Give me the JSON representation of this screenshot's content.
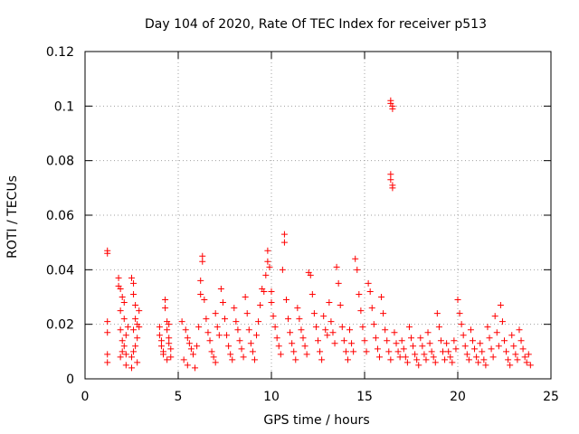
{
  "chart_data": {
    "type": "scatter",
    "title": "Day 104 of 2020, Rate Of TEC Index for receiver p513",
    "xlabel": "GPS time / hours",
    "ylabel": "ROTI / TECUs",
    "xlim": [
      0,
      25
    ],
    "ylim": [
      0,
      0.12
    ],
    "xticks": [
      0,
      5,
      10,
      15,
      20,
      25
    ],
    "yticks": [
      0,
      0.02,
      0.04,
      0.06,
      0.08,
      0.1,
      0.12
    ],
    "xtick_labels": [
      "0",
      "5",
      "10",
      "15",
      "20",
      "25"
    ],
    "ytick_labels": [
      "0",
      "0.02",
      "0.04",
      "0.06",
      "0.08",
      "0.1",
      "0.12"
    ],
    "grid": true,
    "marker": "+",
    "color": "#ff0000",
    "series": [
      {
        "name": "ROTI",
        "points": [
          [
            1.2,
            0.047
          ],
          [
            1.2,
            0.046
          ],
          [
            1.2,
            0.021
          ],
          [
            1.2,
            0.017
          ],
          [
            1.2,
            0.009
          ],
          [
            1.2,
            0.006
          ],
          [
            1.8,
            0.037
          ],
          [
            1.8,
            0.034
          ],
          [
            1.9,
            0.033
          ],
          [
            1.9,
            0.025
          ],
          [
            1.9,
            0.018
          ],
          [
            2.0,
            0.014
          ],
          [
            2.0,
            0.03
          ],
          [
            2.1,
            0.028
          ],
          [
            2.1,
            0.022
          ],
          [
            2.1,
            0.012
          ],
          [
            2.2,
            0.009
          ],
          [
            2.2,
            0.005
          ],
          [
            2.0,
            0.01
          ],
          [
            1.9,
            0.008
          ],
          [
            2.2,
            0.016
          ],
          [
            2.3,
            0.019
          ],
          [
            2.5,
            0.037
          ],
          [
            2.6,
            0.035
          ],
          [
            2.6,
            0.031
          ],
          [
            2.7,
            0.027
          ],
          [
            2.7,
            0.022
          ],
          [
            2.6,
            0.018
          ],
          [
            2.8,
            0.02
          ],
          [
            2.8,
            0.015
          ],
          [
            2.7,
            0.012
          ],
          [
            2.6,
            0.01
          ],
          [
            2.5,
            0.008
          ],
          [
            2.8,
            0.006
          ],
          [
            2.9,
            0.025
          ],
          [
            2.9,
            0.019
          ],
          [
            2.5,
            0.004
          ],
          [
            4.0,
            0.019
          ],
          [
            4.0,
            0.016
          ],
          [
            4.1,
            0.014
          ],
          [
            4.1,
            0.012
          ],
          [
            4.2,
            0.01
          ],
          [
            4.2,
            0.009
          ],
          [
            4.3,
            0.029
          ],
          [
            4.3,
            0.026
          ],
          [
            4.4,
            0.021
          ],
          [
            4.4,
            0.018
          ],
          [
            4.5,
            0.015
          ],
          [
            4.5,
            0.013
          ],
          [
            4.6,
            0.011
          ],
          [
            4.6,
            0.008
          ],
          [
            4.5,
            0.02
          ],
          [
            4.4,
            0.007
          ],
          [
            5.2,
            0.021
          ],
          [
            5.4,
            0.018
          ],
          [
            5.5,
            0.015
          ],
          [
            5.6,
            0.013
          ],
          [
            5.7,
            0.011
          ],
          [
            5.8,
            0.009
          ],
          [
            5.3,
            0.007
          ],
          [
            5.5,
            0.005
          ],
          [
            5.9,
            0.004
          ],
          [
            6.0,
            0.012
          ],
          [
            6.1,
            0.019
          ],
          [
            6.2,
            0.031
          ],
          [
            6.2,
            0.036
          ],
          [
            6.3,
            0.045
          ],
          [
            6.3,
            0.043
          ],
          [
            6.4,
            0.029
          ],
          [
            6.5,
            0.022
          ],
          [
            6.6,
            0.017
          ],
          [
            6.7,
            0.014
          ],
          [
            6.8,
            0.01
          ],
          [
            6.9,
            0.008
          ],
          [
            7.0,
            0.006
          ],
          [
            7.0,
            0.024
          ],
          [
            7.1,
            0.019
          ],
          [
            7.2,
            0.016
          ],
          [
            7.3,
            0.033
          ],
          [
            7.4,
            0.028
          ],
          [
            7.5,
            0.022
          ],
          [
            7.6,
            0.016
          ],
          [
            7.7,
            0.012
          ],
          [
            7.8,
            0.009
          ],
          [
            7.9,
            0.007
          ],
          [
            8.0,
            0.026
          ],
          [
            8.1,
            0.021
          ],
          [
            8.2,
            0.018
          ],
          [
            8.3,
            0.014
          ],
          [
            8.4,
            0.011
          ],
          [
            8.5,
            0.008
          ],
          [
            8.6,
            0.03
          ],
          [
            8.7,
            0.024
          ],
          [
            8.8,
            0.018
          ],
          [
            8.9,
            0.013
          ],
          [
            9.0,
            0.01
          ],
          [
            9.1,
            0.007
          ],
          [
            9.2,
            0.016
          ],
          [
            9.3,
            0.021
          ],
          [
            9.4,
            0.027
          ],
          [
            9.5,
            0.033
          ],
          [
            9.6,
            0.032
          ],
          [
            9.7,
            0.038
          ],
          [
            9.8,
            0.043
          ],
          [
            9.8,
            0.047
          ],
          [
            9.9,
            0.041
          ],
          [
            10.0,
            0.032
          ],
          [
            10.0,
            0.028
          ],
          [
            10.1,
            0.023
          ],
          [
            10.2,
            0.019
          ],
          [
            10.3,
            0.015
          ],
          [
            10.4,
            0.012
          ],
          [
            10.5,
            0.009
          ],
          [
            10.6,
            0.04
          ],
          [
            10.7,
            0.053
          ],
          [
            10.7,
            0.05
          ],
          [
            10.8,
            0.029
          ],
          [
            10.9,
            0.022
          ],
          [
            11.0,
            0.017
          ],
          [
            11.1,
            0.013
          ],
          [
            11.2,
            0.01
          ],
          [
            11.3,
            0.007
          ],
          [
            11.4,
            0.026
          ],
          [
            11.5,
            0.022
          ],
          [
            11.6,
            0.018
          ],
          [
            11.7,
            0.015
          ],
          [
            11.8,
            0.012
          ],
          [
            11.9,
            0.009
          ],
          [
            12.0,
            0.039
          ],
          [
            12.1,
            0.038
          ],
          [
            12.2,
            0.031
          ],
          [
            12.3,
            0.024
          ],
          [
            12.4,
            0.019
          ],
          [
            12.5,
            0.014
          ],
          [
            12.6,
            0.01
          ],
          [
            12.7,
            0.007
          ],
          [
            12.8,
            0.023
          ],
          [
            12.9,
            0.018
          ],
          [
            13.0,
            0.016
          ],
          [
            13.1,
            0.028
          ],
          [
            13.2,
            0.021
          ],
          [
            13.3,
            0.017
          ],
          [
            13.4,
            0.013
          ],
          [
            13.5,
            0.041
          ],
          [
            13.6,
            0.035
          ],
          [
            13.7,
            0.027
          ],
          [
            13.8,
            0.019
          ],
          [
            13.9,
            0.014
          ],
          [
            14.0,
            0.01
          ],
          [
            14.1,
            0.007
          ],
          [
            14.2,
            0.018
          ],
          [
            14.3,
            0.013
          ],
          [
            14.4,
            0.01
          ],
          [
            14.5,
            0.044
          ],
          [
            14.6,
            0.04
          ],
          [
            14.7,
            0.031
          ],
          [
            14.8,
            0.025
          ],
          [
            14.9,
            0.019
          ],
          [
            15.0,
            0.014
          ],
          [
            15.1,
            0.01
          ],
          [
            15.2,
            0.035
          ],
          [
            15.3,
            0.032
          ],
          [
            15.4,
            0.026
          ],
          [
            15.5,
            0.02
          ],
          [
            15.6,
            0.015
          ],
          [
            15.7,
            0.011
          ],
          [
            15.8,
            0.008
          ],
          [
            15.9,
            0.03
          ],
          [
            16.0,
            0.024
          ],
          [
            16.1,
            0.018
          ],
          [
            16.2,
            0.014
          ],
          [
            16.3,
            0.01
          ],
          [
            16.4,
            0.007
          ],
          [
            16.4,
            0.102
          ],
          [
            16.4,
            0.101
          ],
          [
            16.5,
            0.1
          ],
          [
            16.5,
            0.099
          ],
          [
            16.4,
            0.075
          ],
          [
            16.4,
            0.073
          ],
          [
            16.5,
            0.071
          ],
          [
            16.5,
            0.07
          ],
          [
            16.6,
            0.017
          ],
          [
            16.7,
            0.013
          ],
          [
            16.8,
            0.01
          ],
          [
            16.9,
            0.008
          ],
          [
            17.0,
            0.014
          ],
          [
            17.1,
            0.011
          ],
          [
            17.2,
            0.008
          ],
          [
            17.3,
            0.006
          ],
          [
            17.4,
            0.019
          ],
          [
            17.5,
            0.015
          ],
          [
            17.6,
            0.012
          ],
          [
            17.7,
            0.009
          ],
          [
            17.8,
            0.007
          ],
          [
            17.9,
            0.005
          ],
          [
            18.0,
            0.015
          ],
          [
            18.1,
            0.012
          ],
          [
            18.2,
            0.009
          ],
          [
            18.3,
            0.007
          ],
          [
            18.4,
            0.017
          ],
          [
            18.5,
            0.013
          ],
          [
            18.6,
            0.01
          ],
          [
            18.7,
            0.008
          ],
          [
            18.8,
            0.006
          ],
          [
            18.9,
            0.024
          ],
          [
            19.0,
            0.019
          ],
          [
            19.1,
            0.014
          ],
          [
            19.2,
            0.01
          ],
          [
            19.3,
            0.007
          ],
          [
            19.4,
            0.013
          ],
          [
            19.5,
            0.01
          ],
          [
            19.6,
            0.008
          ],
          [
            19.7,
            0.006
          ],
          [
            19.8,
            0.014
          ],
          [
            19.9,
            0.011
          ],
          [
            20.0,
            0.029
          ],
          [
            20.1,
            0.024
          ],
          [
            20.2,
            0.02
          ],
          [
            20.3,
            0.016
          ],
          [
            20.4,
            0.012
          ],
          [
            20.5,
            0.009
          ],
          [
            20.6,
            0.007
          ],
          [
            20.7,
            0.018
          ],
          [
            20.8,
            0.014
          ],
          [
            20.9,
            0.011
          ],
          [
            21.0,
            0.008
          ],
          [
            21.1,
            0.006
          ],
          [
            21.2,
            0.013
          ],
          [
            21.3,
            0.01
          ],
          [
            21.4,
            0.007
          ],
          [
            21.5,
            0.005
          ],
          [
            21.6,
            0.019
          ],
          [
            21.7,
            0.015
          ],
          [
            21.8,
            0.011
          ],
          [
            21.9,
            0.008
          ],
          [
            22.0,
            0.023
          ],
          [
            22.1,
            0.017
          ],
          [
            22.2,
            0.012
          ],
          [
            22.3,
            0.027
          ],
          [
            22.4,
            0.021
          ],
          [
            22.5,
            0.014
          ],
          [
            22.6,
            0.01
          ],
          [
            22.7,
            0.007
          ],
          [
            22.8,
            0.005
          ],
          [
            22.9,
            0.016
          ],
          [
            23.0,
            0.012
          ],
          [
            23.1,
            0.009
          ],
          [
            23.2,
            0.007
          ],
          [
            23.3,
            0.018
          ],
          [
            23.4,
            0.014
          ],
          [
            23.5,
            0.011
          ],
          [
            23.6,
            0.008
          ],
          [
            23.7,
            0.006
          ],
          [
            23.8,
            0.009
          ],
          [
            23.9,
            0.005
          ]
        ]
      }
    ]
  }
}
